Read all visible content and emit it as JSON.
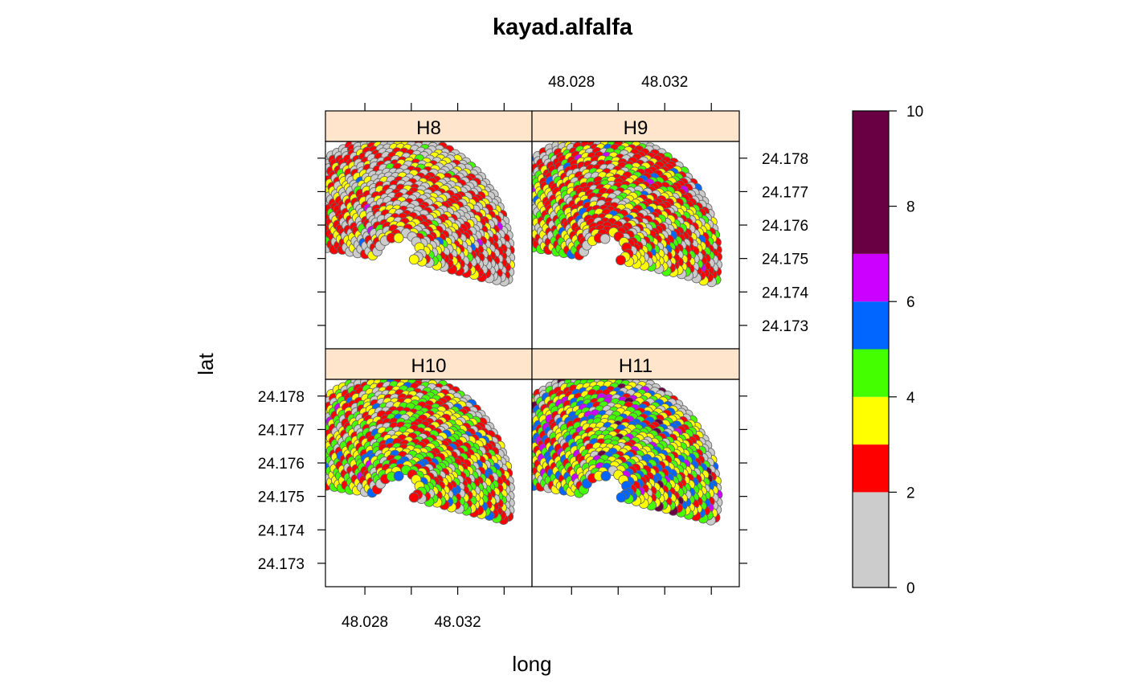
{
  "chart_data": {
    "type": "scatter",
    "title": "kayad.alfalfa",
    "xlabel": "long",
    "ylabel": "lat",
    "x_ticks": [
      "48.028",
      "48.032"
    ],
    "x_tick_values": [
      48.028,
      48.03,
      48.032,
      48.034
    ],
    "y_ticks": [
      "24.173",
      "24.174",
      "24.175",
      "24.176",
      "24.177",
      "24.178"
    ],
    "xlim": [
      48.0263,
      48.0352
    ],
    "ylim": [
      24.1723,
      24.1785
    ],
    "field_center": [
      48.0293,
      24.175
    ],
    "field_extent": {
      "long_range": [
        48.0263,
        48.0349
      ],
      "lat_range": [
        24.1728,
        24.1783
      ]
    },
    "panels": [
      {
        "name": "H8",
        "strip": "H8",
        "dominant_classes": [
          "0-2",
          "2-3",
          "3-4"
        ]
      },
      {
        "name": "H9",
        "strip": "H9",
        "dominant_classes": [
          "2-3",
          "3-4",
          "4-5",
          "0-2"
        ]
      },
      {
        "name": "H10",
        "strip": "H10",
        "dominant_classes": [
          "2-3",
          "4-5",
          "3-4",
          "0-2"
        ]
      },
      {
        "name": "H11",
        "strip": "H11",
        "dominant_classes": [
          "3-4",
          "4-5",
          "5-6",
          "2-3",
          "6-7"
        ]
      }
    ],
    "colorkey": {
      "breaks": [
        0,
        2,
        3,
        4,
        5,
        6,
        7,
        10
      ],
      "colors": [
        "#CCCCCC",
        "#FF0000",
        "#FFFF00",
        "#44FF00",
        "#0066FF",
        "#CC00FF",
        "#6A0044"
      ],
      "tick_labels": [
        "0",
        "2",
        "4",
        "6",
        "8",
        "10"
      ],
      "tick_values": [
        0,
        2,
        4,
        6,
        8,
        10
      ]
    },
    "strip_color": "#FFE5CC",
    "grid": false,
    "legend": "right"
  }
}
